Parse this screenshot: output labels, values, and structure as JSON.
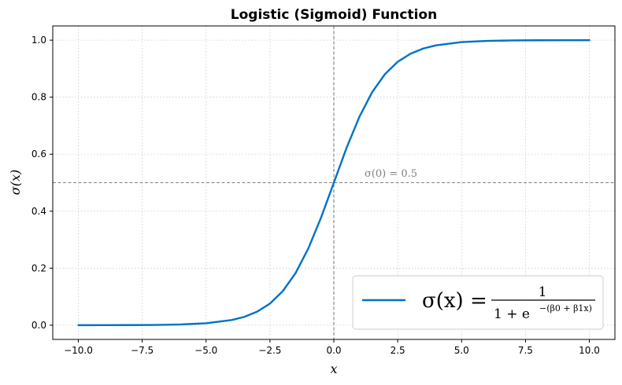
{
  "chart_data": {
    "type": "line",
    "title": "Logistic (Sigmoid) Function",
    "xlabel": "x",
    "ylabel": "σ(x)",
    "xlim": [
      -11,
      11
    ],
    "ylim": [
      -0.05,
      1.05
    ],
    "xticks": [
      -10.0,
      -7.5,
      -5.0,
      -2.5,
      0.0,
      2.5,
      5.0,
      7.5,
      10.0
    ],
    "xtick_labels": [
      "−10.0",
      "−7.5",
      "−5.0",
      "−2.5",
      "0.0",
      "2.5",
      "5.0",
      "7.5",
      "10.0"
    ],
    "yticks": [
      0.0,
      0.2,
      0.4,
      0.6,
      0.8,
      1.0
    ],
    "ytick_labels": [
      "0.0",
      "0.2",
      "0.4",
      "0.6",
      "0.8",
      "1.0"
    ],
    "grid": true,
    "legend_position": "lower-right",
    "series": [
      {
        "name": "σ(x) = 1 / (1 + e^−(β0 + β1x))",
        "color": "#0072c6",
        "x": [
          -10,
          -9,
          -8,
          -7,
          -6,
          -5,
          -4,
          -3.5,
          -3,
          -2.5,
          -2,
          -1.5,
          -1,
          -0.5,
          0,
          0.5,
          1,
          1.5,
          2,
          2.5,
          3,
          3.5,
          4,
          5,
          6,
          7,
          8,
          9,
          10
        ],
        "y": [
          0.0,
          0.0001,
          0.0003,
          0.0009,
          0.0025,
          0.0067,
          0.018,
          0.0293,
          0.0474,
          0.0759,
          0.1192,
          0.1824,
          0.2689,
          0.3775,
          0.5,
          0.6225,
          0.7311,
          0.8176,
          0.8808,
          0.9241,
          0.9526,
          0.9707,
          0.982,
          0.9933,
          0.9975,
          0.9991,
          0.9997,
          0.9999,
          1.0
        ]
      }
    ],
    "reference_lines": [
      {
        "orientation": "horizontal",
        "value": 0.5,
        "color": "#808080",
        "style": "dashed"
      },
      {
        "orientation": "vertical",
        "value": 0,
        "color": "#808080",
        "style": "dashed"
      }
    ],
    "annotation": {
      "text": "σ(0) = 0.5",
      "x": 1.2,
      "y": 0.52
    },
    "legend": {
      "lhs": "σ(x) =",
      "numerator": "1",
      "denominator_base": "1 + e",
      "denominator_exponent": "−(β0 + β1x)"
    }
  }
}
